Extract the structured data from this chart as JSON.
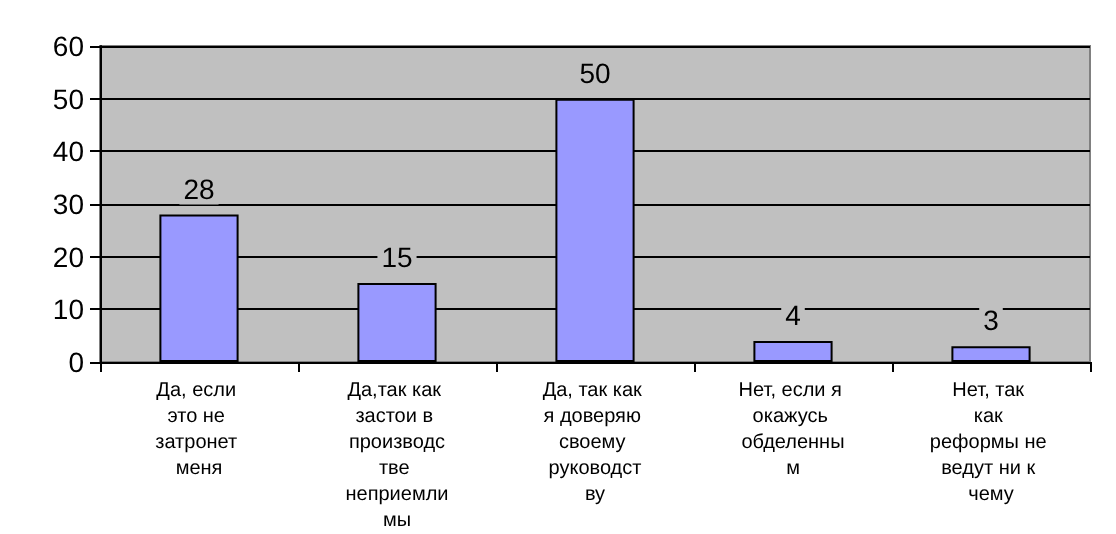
{
  "chart_data": {
    "type": "bar",
    "categories": [
      "Да, если это не затронет меня",
      "Да,так как застои в производстве неприемлимы",
      "Да, так как я доверяю своему руководству",
      "Нет, если я окажусь обделенным",
      "Нет, так как реформы не ведут ни к чему"
    ],
    "values": [
      28,
      15,
      50,
      4,
      3
    ],
    "color": "#9999ff",
    "ylim": [
      0,
      60
    ],
    "yticks": [
      0,
      10,
      20,
      30,
      40,
      50,
      60
    ],
    "grid": "y",
    "data_labels": true
  }
}
